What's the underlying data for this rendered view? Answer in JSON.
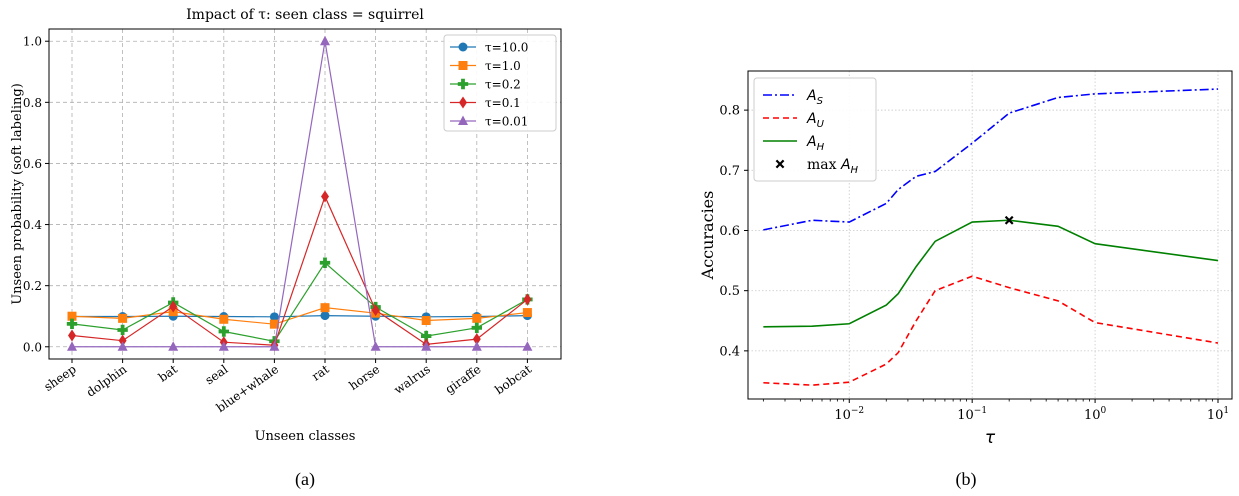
{
  "chart_data": [
    {
      "type": "line",
      "panel_label": "(a)",
      "title": "Impact of τ: seen class = squirrel",
      "xlabel": "Unseen classes",
      "ylabel": "Unseen probability (soft labeling)",
      "categories": [
        "sheep",
        "dolphin",
        "bat",
        "seal",
        "blue+whale",
        "rat",
        "horse",
        "walrus",
        "giraffe",
        "bobcat"
      ],
      "ylim": [
        -0.04,
        1.04
      ],
      "yticks": [
        "0.0",
        "0.2",
        "0.4",
        "0.6",
        "0.8",
        "1.0"
      ],
      "ytick_values": [
        0,
        0.2,
        0.4,
        0.6,
        0.8,
        1.0
      ],
      "grid": true,
      "legend_position": "top-right",
      "series": [
        {
          "name": "τ=10.0",
          "color": "#1f77b4",
          "marker": "circle",
          "values": [
            0.099,
            0.099,
            0.1,
            0.099,
            0.098,
            0.102,
            0.1,
            0.098,
            0.099,
            0.102
          ]
        },
        {
          "name": "τ=1.0",
          "color": "#ff7f0e",
          "marker": "square",
          "values": [
            0.1,
            0.093,
            0.115,
            0.09,
            0.074,
            0.128,
            0.11,
            0.086,
            0.093,
            0.112
          ]
        },
        {
          "name": "τ=0.2",
          "color": "#2ca02c",
          "marker": "plus",
          "values": [
            0.075,
            0.055,
            0.145,
            0.05,
            0.018,
            0.275,
            0.13,
            0.035,
            0.062,
            0.155
          ]
        },
        {
          "name": "τ=0.1",
          "color": "#d62728",
          "marker": "diamond",
          "values": [
            0.037,
            0.02,
            0.132,
            0.015,
            0.005,
            0.492,
            0.12,
            0.008,
            0.025,
            0.155
          ]
        },
        {
          "name": "τ=0.01",
          "color": "#9467bd",
          "marker": "triangle",
          "values": [
            0.0,
            0.0,
            0.0,
            0.0,
            0.0,
            1.0,
            0.0,
            0.0,
            0.0,
            0.0
          ]
        }
      ]
    },
    {
      "type": "line",
      "panel_label": "(b)",
      "title": "",
      "xlabel": "τ",
      "ylabel": "Accuracies",
      "xscale": "log",
      "xlim": [
        0.0015,
        13
      ],
      "ylim": [
        0.32,
        0.865
      ],
      "xtick_base": "10",
      "xtick_exponents": [
        "−2",
        "−1",
        "0",
        "1"
      ],
      "xtick_values": [
        0.01,
        0.1,
        1,
        10
      ],
      "yticks": [
        "0.4",
        "0.5",
        "0.6",
        "0.7",
        "0.8"
      ],
      "ytick_values": [
        0.4,
        0.5,
        0.6,
        0.7,
        0.8
      ],
      "grid": true,
      "legend_position": "top-left",
      "series": [
        {
          "name": "A_S",
          "color": "#0000ff",
          "style": "dash-dot",
          "x": [
            0.002,
            0.005,
            0.01,
            0.02,
            0.025,
            0.035,
            0.05,
            0.1,
            0.2,
            0.5,
            1,
            10
          ],
          "y": [
            0.601,
            0.617,
            0.614,
            0.645,
            0.668,
            0.69,
            0.698,
            0.745,
            0.795,
            0.821,
            0.827,
            0.835
          ]
        },
        {
          "name": "A_U",
          "color": "#ff0000",
          "style": "dashed",
          "x": [
            0.002,
            0.005,
            0.01,
            0.02,
            0.025,
            0.035,
            0.05,
            0.1,
            0.2,
            0.5,
            1,
            10
          ],
          "y": [
            0.347,
            0.343,
            0.348,
            0.378,
            0.397,
            0.45,
            0.5,
            0.524,
            0.505,
            0.483,
            0.447,
            0.413
          ]
        },
        {
          "name": "A_H",
          "color": "#008000",
          "style": "solid",
          "x": [
            0.002,
            0.005,
            0.01,
            0.02,
            0.025,
            0.035,
            0.05,
            0.1,
            0.2,
            0.5,
            1,
            10
          ],
          "y": [
            0.44,
            0.441,
            0.445,
            0.476,
            0.495,
            0.54,
            0.582,
            0.614,
            0.617,
            0.607,
            0.578,
            0.55
          ]
        }
      ],
      "max_marker": {
        "name": "max A_H",
        "x": 0.2,
        "y": 0.617,
        "color": "#000000"
      }
    }
  ]
}
